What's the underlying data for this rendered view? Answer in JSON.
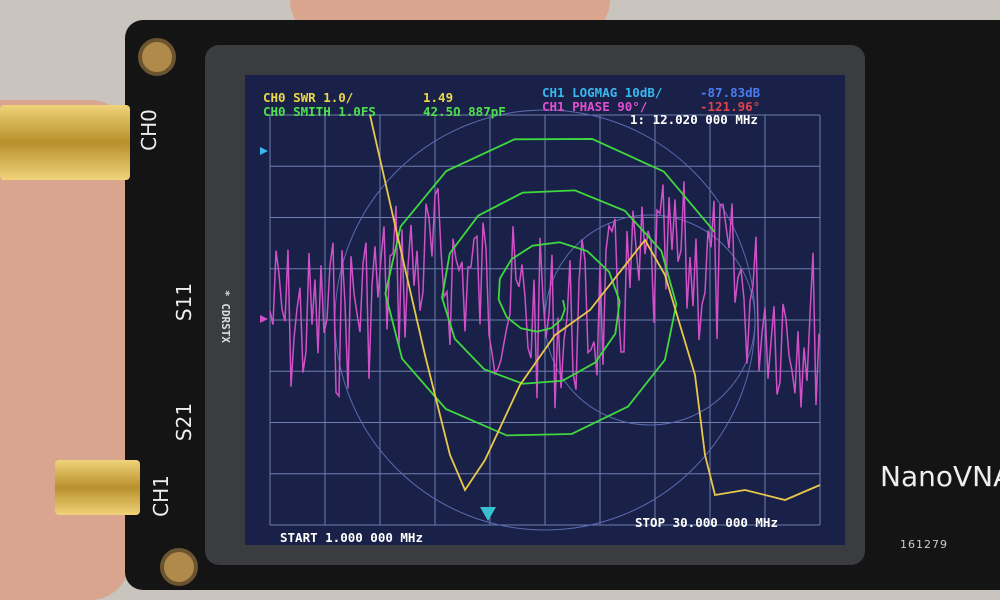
{
  "device": {
    "brand": "NanoVNA",
    "serial": "161279",
    "port_labels": {
      "ch0": "CH0",
      "ch1": "CH1",
      "s11": "S11",
      "s21": "S21"
    }
  },
  "screen": {
    "ch0_swr": {
      "label": "CH0 SWR 1.0/",
      "value": "1.49",
      "color": "#e8d84a"
    },
    "ch0_smith": {
      "label": "CH0 SMITH 1.0FS",
      "value": "42.5Ω 887pF",
      "color": "#4fe04f"
    },
    "ch1_logmag": {
      "label": "CH1 LOGMAG 10dB/",
      "value": "-87.83dB",
      "color": "#39b8f0"
    },
    "ch1_phase": {
      "label": "CH1 PHASE 90°/",
      "value": "-121.96°",
      "color": "#e04fd0"
    },
    "marker": "1: 12.020 000 MHz",
    "side_menu": "* CDRSTX",
    "start": "START 1.000 000 MHz",
    "stop": "STOP 30.000 000 MHz"
  }
}
